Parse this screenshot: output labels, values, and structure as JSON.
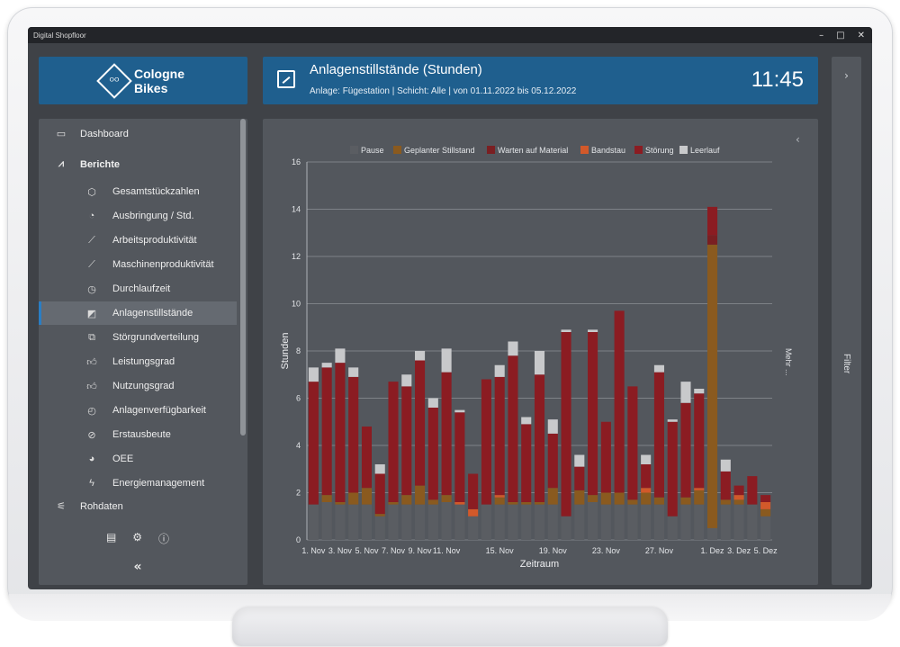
{
  "window": {
    "title": "Digital Shopfloor",
    "controls": [
      "–",
      "□",
      "✕"
    ]
  },
  "brand": {
    "line1": "Cologne",
    "line2": "Bikes",
    "icon": "bicycle-icon"
  },
  "header": {
    "title": "Anlagenstillstände (Stunden)",
    "subtitle": "Anlage: Fügestation | Schicht: Alle | von 01.11.2022 bis 05.12.2022",
    "clock": "11:45"
  },
  "filter": {
    "label": "Filter"
  },
  "sidebar": {
    "dashboard": "Dashboard",
    "berichte": "Berichte",
    "rohdaten": "Rohdaten",
    "items": [
      {
        "label": "Gesamtstückzahlen",
        "icon": "cube-icon"
      },
      {
        "label": "Ausbringung / Std.",
        "icon": "speed-icon"
      },
      {
        "label": "Arbeitsproduktivität",
        "icon": "trend-icon"
      },
      {
        "label": "Maschinenproduktivität",
        "icon": "trend-icon"
      },
      {
        "label": "Durchlaufzeit",
        "icon": "stopwatch-icon"
      },
      {
        "label": "Anlagenstillstände",
        "icon": "downtime-icon",
        "active": true
      },
      {
        "label": "Störgrundverteilung",
        "icon": "structure-icon"
      },
      {
        "label": "Leistungsgrad",
        "icon": "thumbs-up-icon"
      },
      {
        "label": "Nutzungsgrad",
        "icon": "thumbs-up-icon"
      },
      {
        "label": "Anlagenverfügbarkeit",
        "icon": "clock-icon"
      },
      {
        "label": "Erstausbeute",
        "icon": "check-circle-icon"
      },
      {
        "label": "OEE",
        "icon": "gauge-icon"
      },
      {
        "label": "Energiemanagement",
        "icon": "bolt-icon"
      }
    ]
  },
  "panel": {
    "more_label": "Mehr ..."
  },
  "chart_data": {
    "type": "bar",
    "stacked": true,
    "title": "",
    "xlabel": "Zeitraum",
    "ylabel": "Stunden",
    "ylim": [
      0,
      16
    ],
    "yticks": [
      0,
      2,
      4,
      6,
      8,
      10,
      12,
      14,
      16
    ],
    "grid": true,
    "legend_position": "top",
    "categories": [
      "1. Nov",
      "2. Nov",
      "3. Nov",
      "4. Nov",
      "5. Nov",
      "6. Nov",
      "7. Nov",
      "8. Nov",
      "9. Nov",
      "10. Nov",
      "11. Nov",
      "12. Nov",
      "13. Nov",
      "14. Nov",
      "15. Nov",
      "16. Nov",
      "17. Nov",
      "18. Nov",
      "19. Nov",
      "20. Nov",
      "21. Nov",
      "22. Nov",
      "23. Nov",
      "24. Nov",
      "25. Nov",
      "26. Nov",
      "27. Nov",
      "28. Nov",
      "29. Nov",
      "30. Nov",
      "1. Dez",
      "2. Dez",
      "3. Dez",
      "4. Dez",
      "5. Dez"
    ],
    "tick_labels": [
      "1. Nov",
      "3. Nov",
      "5. Nov",
      "7. Nov",
      "9. Nov",
      "11. Nov",
      "15. Nov",
      "19. Nov",
      "23. Nov",
      "27. Nov",
      "1. Dez",
      "3. Dez",
      "5. Dez"
    ],
    "series": [
      {
        "name": "Pause",
        "color": "#5a5d62",
        "values": [
          1.5,
          1.6,
          1.5,
          1.5,
          1.5,
          1.0,
          1.5,
          1.5,
          1.5,
          1.5,
          1.6,
          1.5,
          1.0,
          1.5,
          1.5,
          1.5,
          1.5,
          1.5,
          1.5,
          1.0,
          1.5,
          1.6,
          1.5,
          1.5,
          1.5,
          1.5,
          1.5,
          1.0,
          1.5,
          1.5,
          0.5,
          1.5,
          1.5,
          1.5,
          1.0
        ]
      },
      {
        "name": "Geplanter Stillstand",
        "color": "#8a5a1f",
        "values": [
          0.0,
          0.3,
          0.1,
          0.5,
          0.7,
          0.1,
          0.1,
          0.4,
          0.8,
          0.2,
          0.3,
          0.0,
          0.0,
          0.0,
          0.3,
          0.1,
          0.1,
          0.1,
          0.7,
          0.0,
          0.6,
          0.3,
          0.5,
          0.5,
          0.2,
          0.5,
          0.3,
          0.0,
          0.3,
          0.6,
          12.0,
          0.2,
          0.2,
          0.0,
          0.3
        ]
      },
      {
        "name": "Warten auf Material",
        "color": "#7a1f22",
        "values": [
          0.0,
          0.0,
          0.0,
          0.0,
          0.0,
          0.0,
          0.0,
          0.0,
          0.0,
          0.0,
          0.0,
          0.0,
          0.0,
          0.0,
          0.0,
          0.0,
          0.0,
          0.0,
          0.0,
          0.0,
          0.0,
          0.0,
          0.0,
          0.0,
          0.0,
          0.0,
          0.0,
          0.0,
          0.0,
          0.0,
          0.4,
          0.0,
          0.0,
          0.0,
          0.0
        ]
      },
      {
        "name": "Bandstau",
        "color": "#d2592a",
        "values": [
          0.0,
          0.0,
          0.0,
          0.0,
          0.0,
          0.0,
          0.0,
          0.0,
          0.0,
          0.0,
          0.0,
          0.1,
          0.3,
          0.0,
          0.1,
          0.0,
          0.0,
          0.0,
          0.0,
          0.0,
          0.0,
          0.0,
          0.0,
          0.0,
          0.0,
          0.2,
          0.0,
          0.0,
          0.0,
          0.1,
          0.0,
          0.0,
          0.2,
          0.0,
          0.3
        ]
      },
      {
        "name": "Störung",
        "color": "#8b1c22",
        "values": [
          5.2,
          5.4,
          5.9,
          4.9,
          2.6,
          1.7,
          5.1,
          4.6,
          5.3,
          3.9,
          5.2,
          3.8,
          1.5,
          5.3,
          5.0,
          6.2,
          3.3,
          5.4,
          2.3,
          7.8,
          1.0,
          6.9,
          3.0,
          7.7,
          4.8,
          1.0,
          5.3,
          4.0,
          4.0,
          4.0,
          1.2,
          1.2,
          0.4,
          1.2,
          0.3
        ]
      },
      {
        "name": "Leerlauf",
        "color": "#c8c9cb",
        "values": [
          0.6,
          0.2,
          0.6,
          0.4,
          0.0,
          0.4,
          0.0,
          0.5,
          0.4,
          0.4,
          1.0,
          0.1,
          0.0,
          0.0,
          0.5,
          0.6,
          0.3,
          1.0,
          0.6,
          0.1,
          0.5,
          0.1,
          0.0,
          0.0,
          0.0,
          0.4,
          0.3,
          0.1,
          0.9,
          0.2,
          0.0,
          0.5,
          0.0,
          0.0,
          0.0
        ]
      }
    ]
  }
}
